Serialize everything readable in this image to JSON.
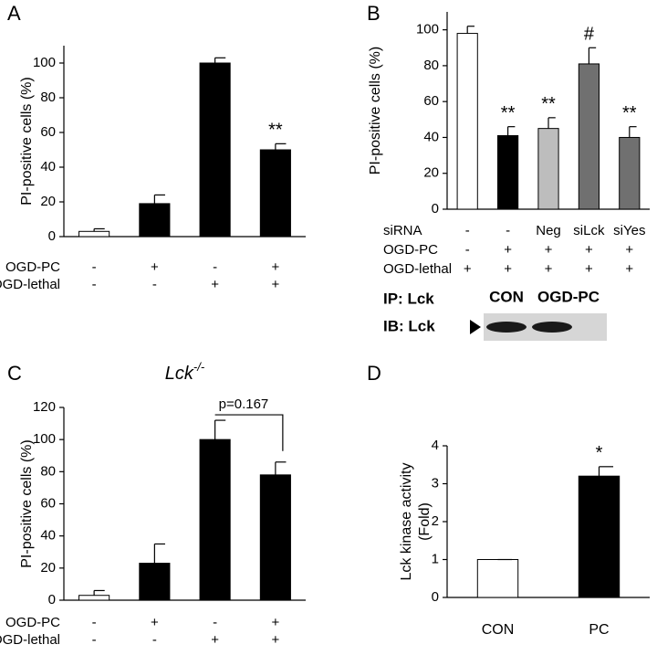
{
  "chart_data": [
    {
      "type": "bar",
      "panel": "A",
      "ylabel": "PI-positive cells (%)",
      "categories": [
        null,
        null,
        null,
        null
      ],
      "values": [
        3,
        19,
        100,
        50
      ],
      "errors": [
        1.5,
        5,
        3,
        3.5
      ],
      "colors": [
        "#ffffff",
        "#000000",
        "#000000",
        "#000000"
      ],
      "annotations": [
        null,
        null,
        null,
        "**"
      ],
      "rows": [
        {
          "label": "OGD-PC",
          "values": [
            "-",
            "+",
            "-",
            "+"
          ]
        },
        {
          "label": "OGD-lethal",
          "values": [
            "-",
            "-",
            "+",
            "+"
          ]
        }
      ],
      "ylim": [
        0,
        110
      ],
      "yticks": [
        0,
        20,
        40,
        60,
        80,
        100
      ]
    },
    {
      "type": "bar",
      "panel": "B",
      "ylabel": "PI-positive cells (%)",
      "categories": [
        null,
        null,
        null,
        null,
        null
      ],
      "values": [
        98,
        41,
        45,
        81,
        40
      ],
      "errors": [
        4,
        5,
        6,
        9,
        6
      ],
      "colors": [
        "#ffffff",
        "#000000",
        "#bdbdbd",
        "#707070",
        "#707070"
      ],
      "annotations": [
        null,
        "**",
        "**",
        "#",
        "**"
      ],
      "rows": [
        {
          "label": "siRNA",
          "values": [
            "-",
            "-",
            "Neg",
            "siLck",
            "siYes"
          ]
        },
        {
          "label": "OGD-PC",
          "values": [
            "-",
            "+",
            "+",
            "+",
            "+"
          ]
        },
        {
          "label": "OGD-lethal",
          "values": [
            "+",
            "+",
            "+",
            "+",
            "+"
          ]
        }
      ],
      "ylim": [
        0,
        110
      ],
      "yticks": [
        0,
        20,
        40,
        60,
        80,
        100
      ]
    },
    {
      "type": "bar",
      "panel": "C",
      "title": "Lck",
      "title_sup": "-/-",
      "ylabel": "PI-positive cells (%)",
      "categories": [
        null,
        null,
        null,
        null
      ],
      "values": [
        3,
        23,
        100,
        78
      ],
      "errors": [
        3,
        12,
        12,
        8
      ],
      "colors": [
        "#ffffff",
        "#000000",
        "#000000",
        "#000000"
      ],
      "annotations": [
        null,
        null,
        null,
        null
      ],
      "bracket": "p=0.167",
      "rows": [
        {
          "label": "OGD-PC",
          "values": [
            "-",
            "+",
            "-",
            "+"
          ]
        },
        {
          "label": "OGD-lethal",
          "values": [
            "-",
            "-",
            "+",
            "+"
          ]
        }
      ],
      "ylim": [
        0,
        120
      ],
      "yticks": [
        0,
        20,
        40,
        60,
        80,
        100,
        120
      ]
    },
    {
      "type": "bar",
      "panel": "D",
      "ylabel": [
        "Lck kinase activity",
        "(Fold)"
      ],
      "blot": {
        "ip": "IP: Lck",
        "ib": "IB: Lck",
        "lanes": [
          "CON",
          "OGD-PC"
        ]
      },
      "categories": [
        "CON",
        "PC"
      ],
      "values": [
        1,
        3.2
      ],
      "errors": [
        0,
        0.25
      ],
      "colors": [
        "#ffffff",
        "#000000"
      ],
      "annotations": [
        null,
        "*"
      ],
      "rows": [],
      "ylim": [
        0,
        4
      ],
      "yticks": [
        0,
        1,
        2,
        3,
        4
      ]
    }
  ]
}
